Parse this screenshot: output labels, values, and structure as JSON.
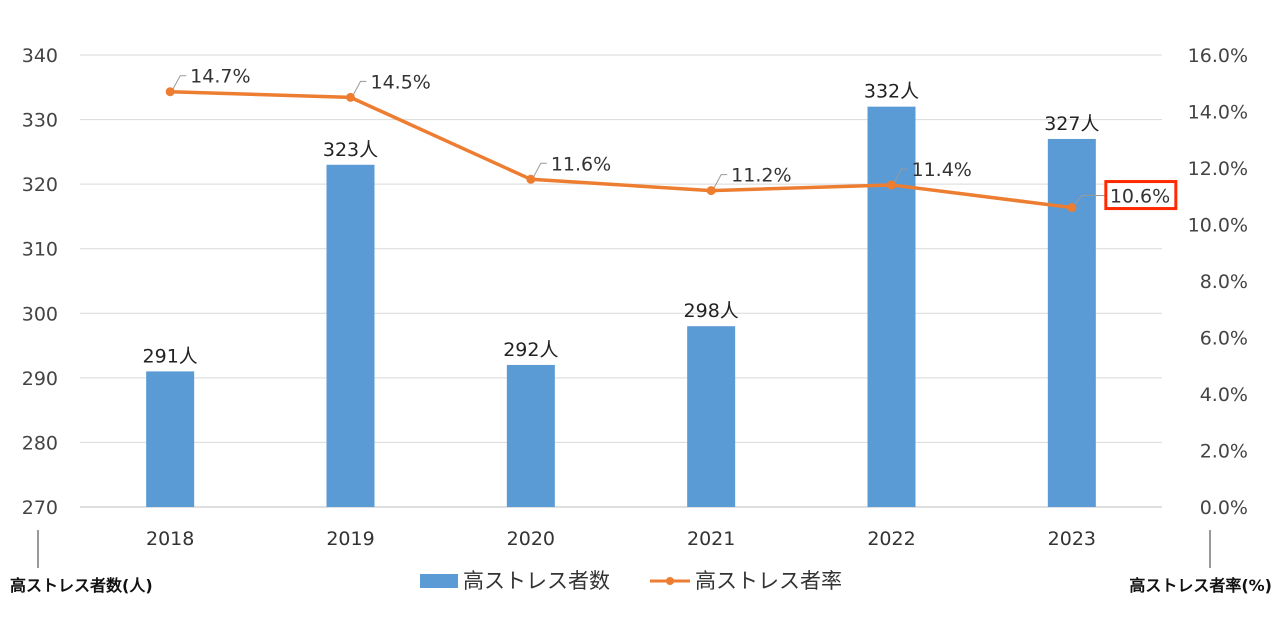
{
  "chart_data": {
    "type": "bar",
    "categories": [
      "2018",
      "2019",
      "2020",
      "2021",
      "2022",
      "2023"
    ],
    "series": [
      {
        "name": "高ストレス者数",
        "type": "bar",
        "axis": "left",
        "color": "#5b9bd5",
        "values": [
          291,
          323,
          292,
          298,
          332,
          327
        ],
        "labels": [
          "291人",
          "323人",
          "292人",
          "298人",
          "332人",
          "327人"
        ]
      },
      {
        "name": "高ストレス者率",
        "type": "line",
        "axis": "right",
        "color": "#ed7d31",
        "values": [
          14.7,
          14.5,
          11.6,
          11.2,
          11.4,
          10.6
        ],
        "labels": [
          "14.7%",
          "14.5%",
          "11.6%",
          "11.2%",
          "11.4%",
          "10.6%"
        ]
      }
    ],
    "y_left": {
      "title": "高ストレス者数(人)",
      "ylim": [
        270,
        340
      ],
      "ticks": [
        "340",
        "330",
        "320",
        "310",
        "300",
        "290",
        "280",
        "270"
      ]
    },
    "y_right": {
      "title": "高ストレス者率(%)",
      "ylim": [
        0,
        16
      ],
      "ticks": [
        "16.0%",
        "14.0%",
        "12.0%",
        "10.0%",
        "8.0%",
        "6.0%",
        "4.0%",
        "2.0%",
        "0.0%"
      ]
    },
    "grid": true,
    "legend": "bottom",
    "highlight": {
      "series": "高ストレス者率",
      "index": 5,
      "color": "#ff2a00"
    }
  }
}
